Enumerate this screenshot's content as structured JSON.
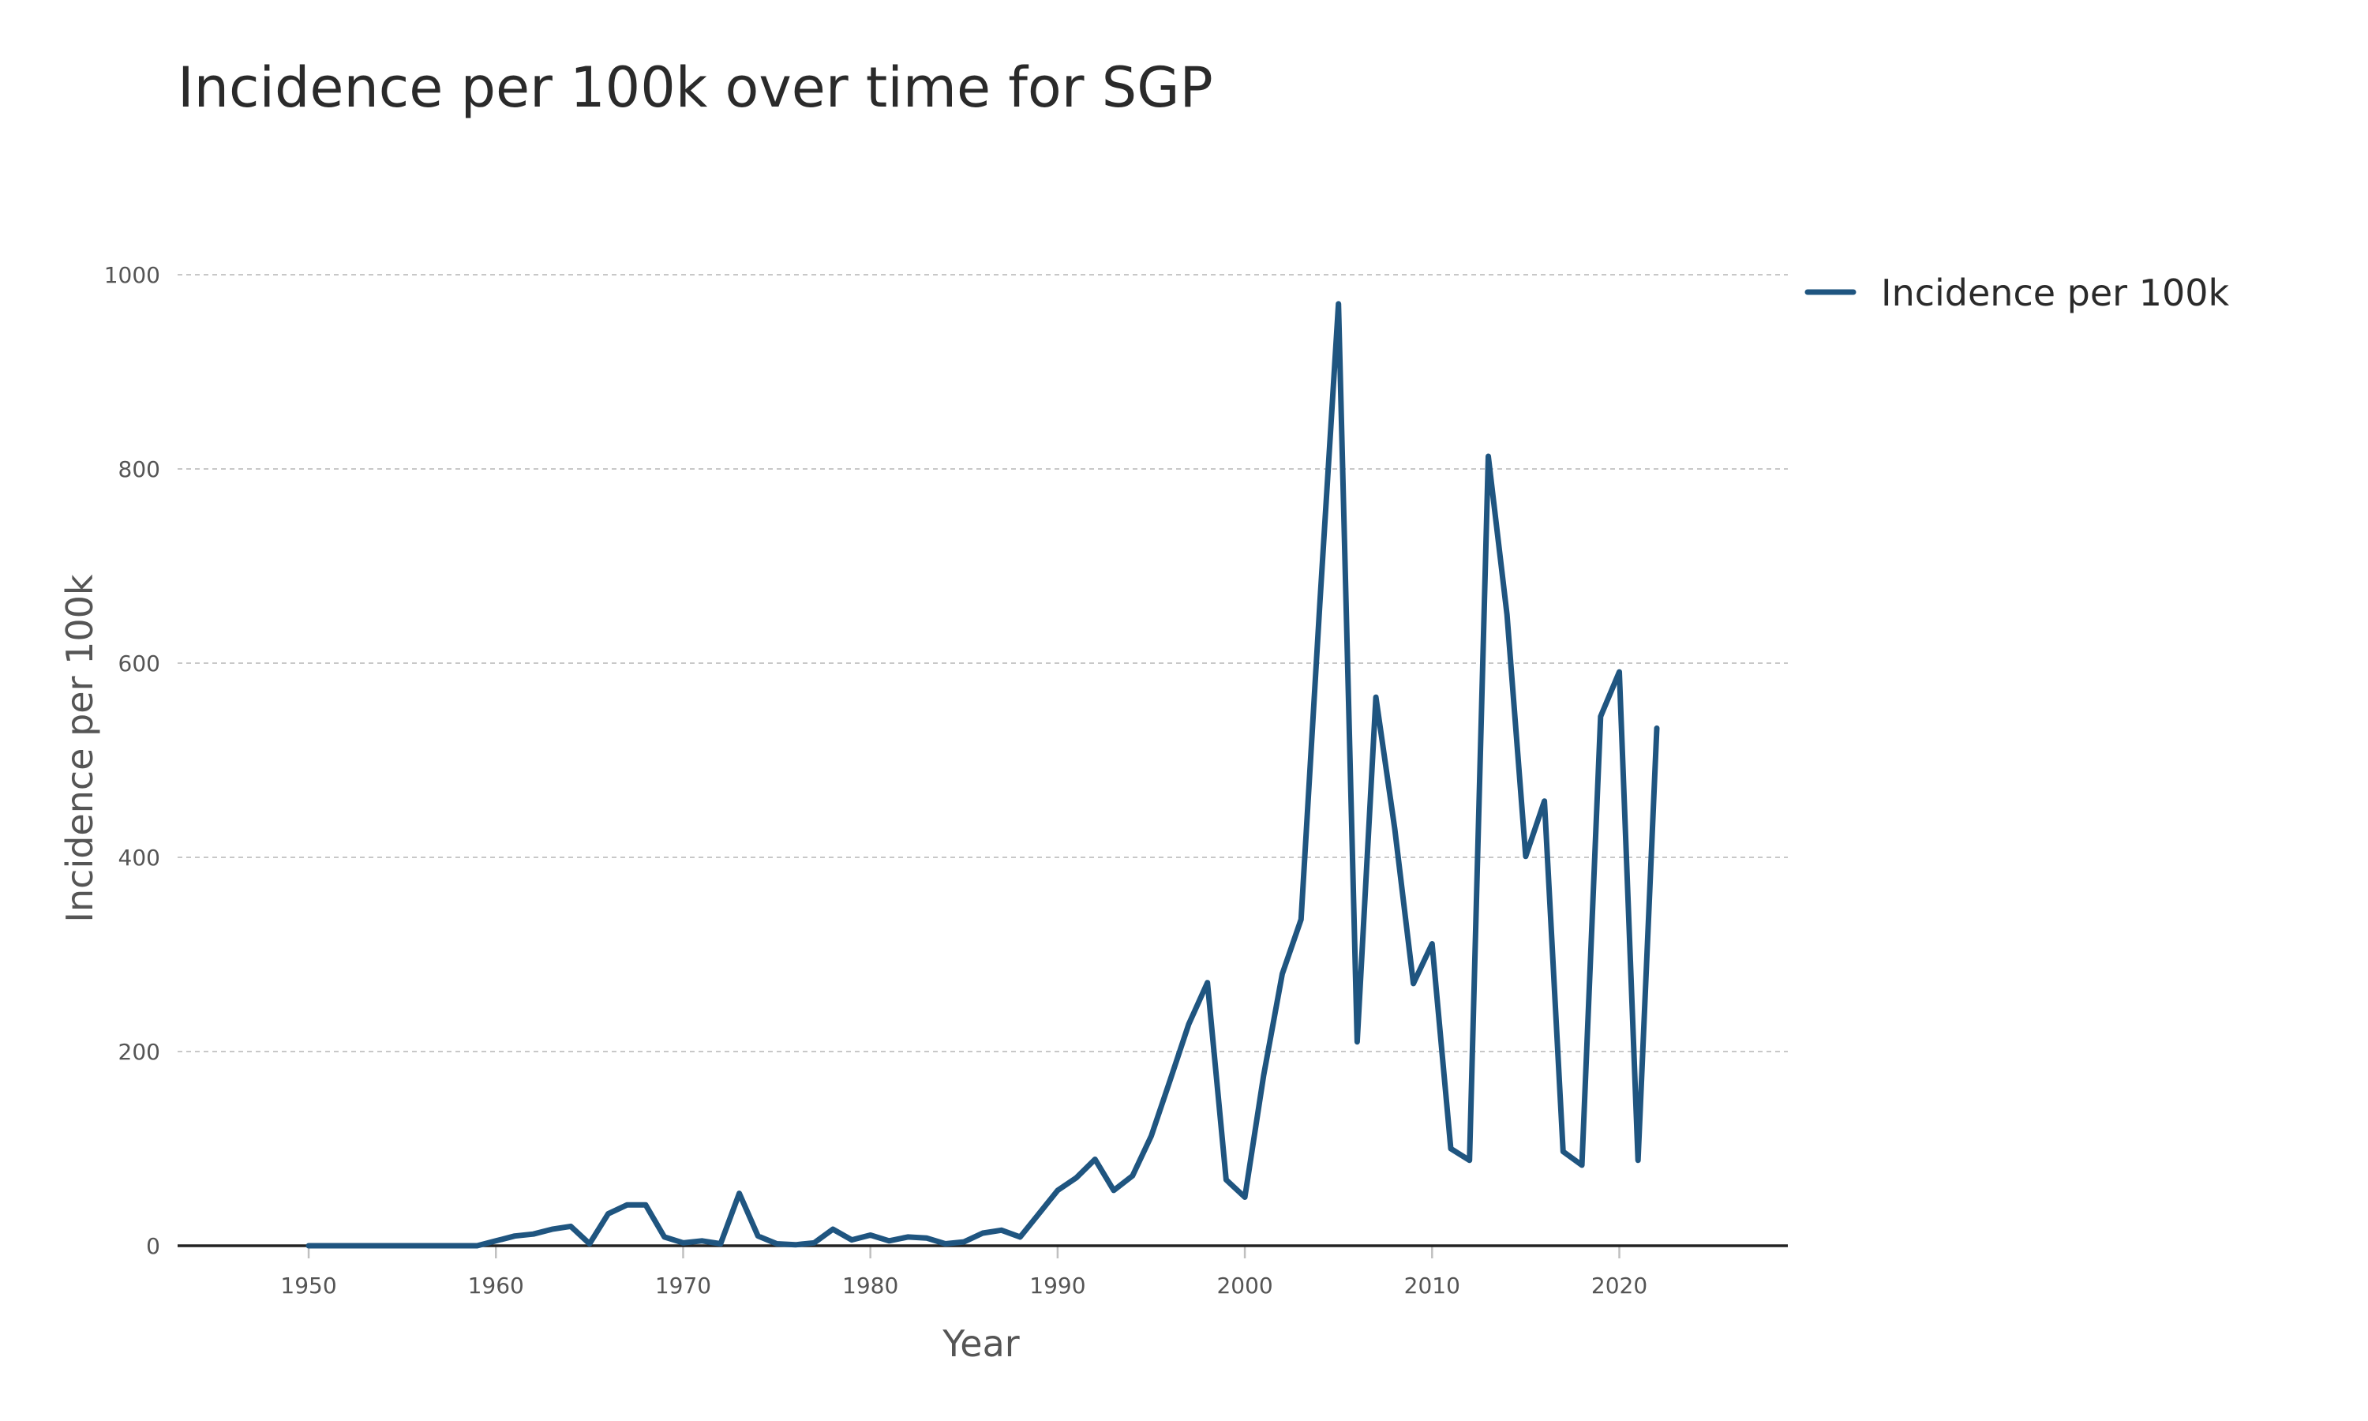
{
  "chart_data": {
    "type": "line",
    "title": "Incidence per 100k over time for SGP",
    "xlabel": "Year",
    "ylabel": "Incidence per 100k",
    "xlim": [
      1943,
      2029
    ],
    "ylim": [
      0,
      1000
    ],
    "xticks": [
      1950,
      1960,
      1970,
      1980,
      1990,
      2000,
      2010,
      2020
    ],
    "yticks": [
      0,
      200,
      400,
      600,
      800,
      1000
    ],
    "grid": true,
    "legend_position": "top-right",
    "series": [
      {
        "name": "Incidence per 100k",
        "color": "#1f5580",
        "x": [
          1950,
          1951,
          1952,
          1953,
          1954,
          1955,
          1956,
          1957,
          1958,
          1959,
          1960,
          1961,
          1962,
          1963,
          1964,
          1965,
          1966,
          1967,
          1968,
          1969,
          1970,
          1971,
          1972,
          1973,
          1974,
          1975,
          1976,
          1977,
          1978,
          1979,
          1980,
          1981,
          1982,
          1983,
          1984,
          1985,
          1986,
          1987,
          1988,
          1989,
          1990,
          1991,
          1992,
          1993,
          1994,
          1995,
          1996,
          1997,
          1998,
          1999,
          2000,
          2001,
          2002,
          2003,
          2004,
          2005,
          2006,
          2007,
          2008,
          2009,
          2010,
          2011,
          2012,
          2013,
          2014,
          2015,
          2016,
          2017,
          2018,
          2019,
          2020,
          2021,
          2022
        ],
        "y": [
          0,
          0,
          0,
          0,
          0,
          0,
          0,
          0,
          0,
          0,
          5,
          10,
          12,
          17,
          20,
          2,
          33,
          42,
          42,
          9,
          3,
          5,
          2,
          54,
          10,
          2,
          1,
          3,
          17,
          6,
          11,
          5,
          9,
          8,
          2,
          4,
          13,
          16,
          9,
          33,
          57,
          70,
          89,
          57,
          72,
          113,
          170,
          228,
          271,
          68,
          50,
          175,
          280,
          336,
          660,
          970,
          210,
          565,
          430,
          270,
          311,
          100,
          88,
          813,
          650,
          401,
          458,
          97,
          83,
          545,
          591,
          88,
          533
        ]
      }
    ]
  }
}
